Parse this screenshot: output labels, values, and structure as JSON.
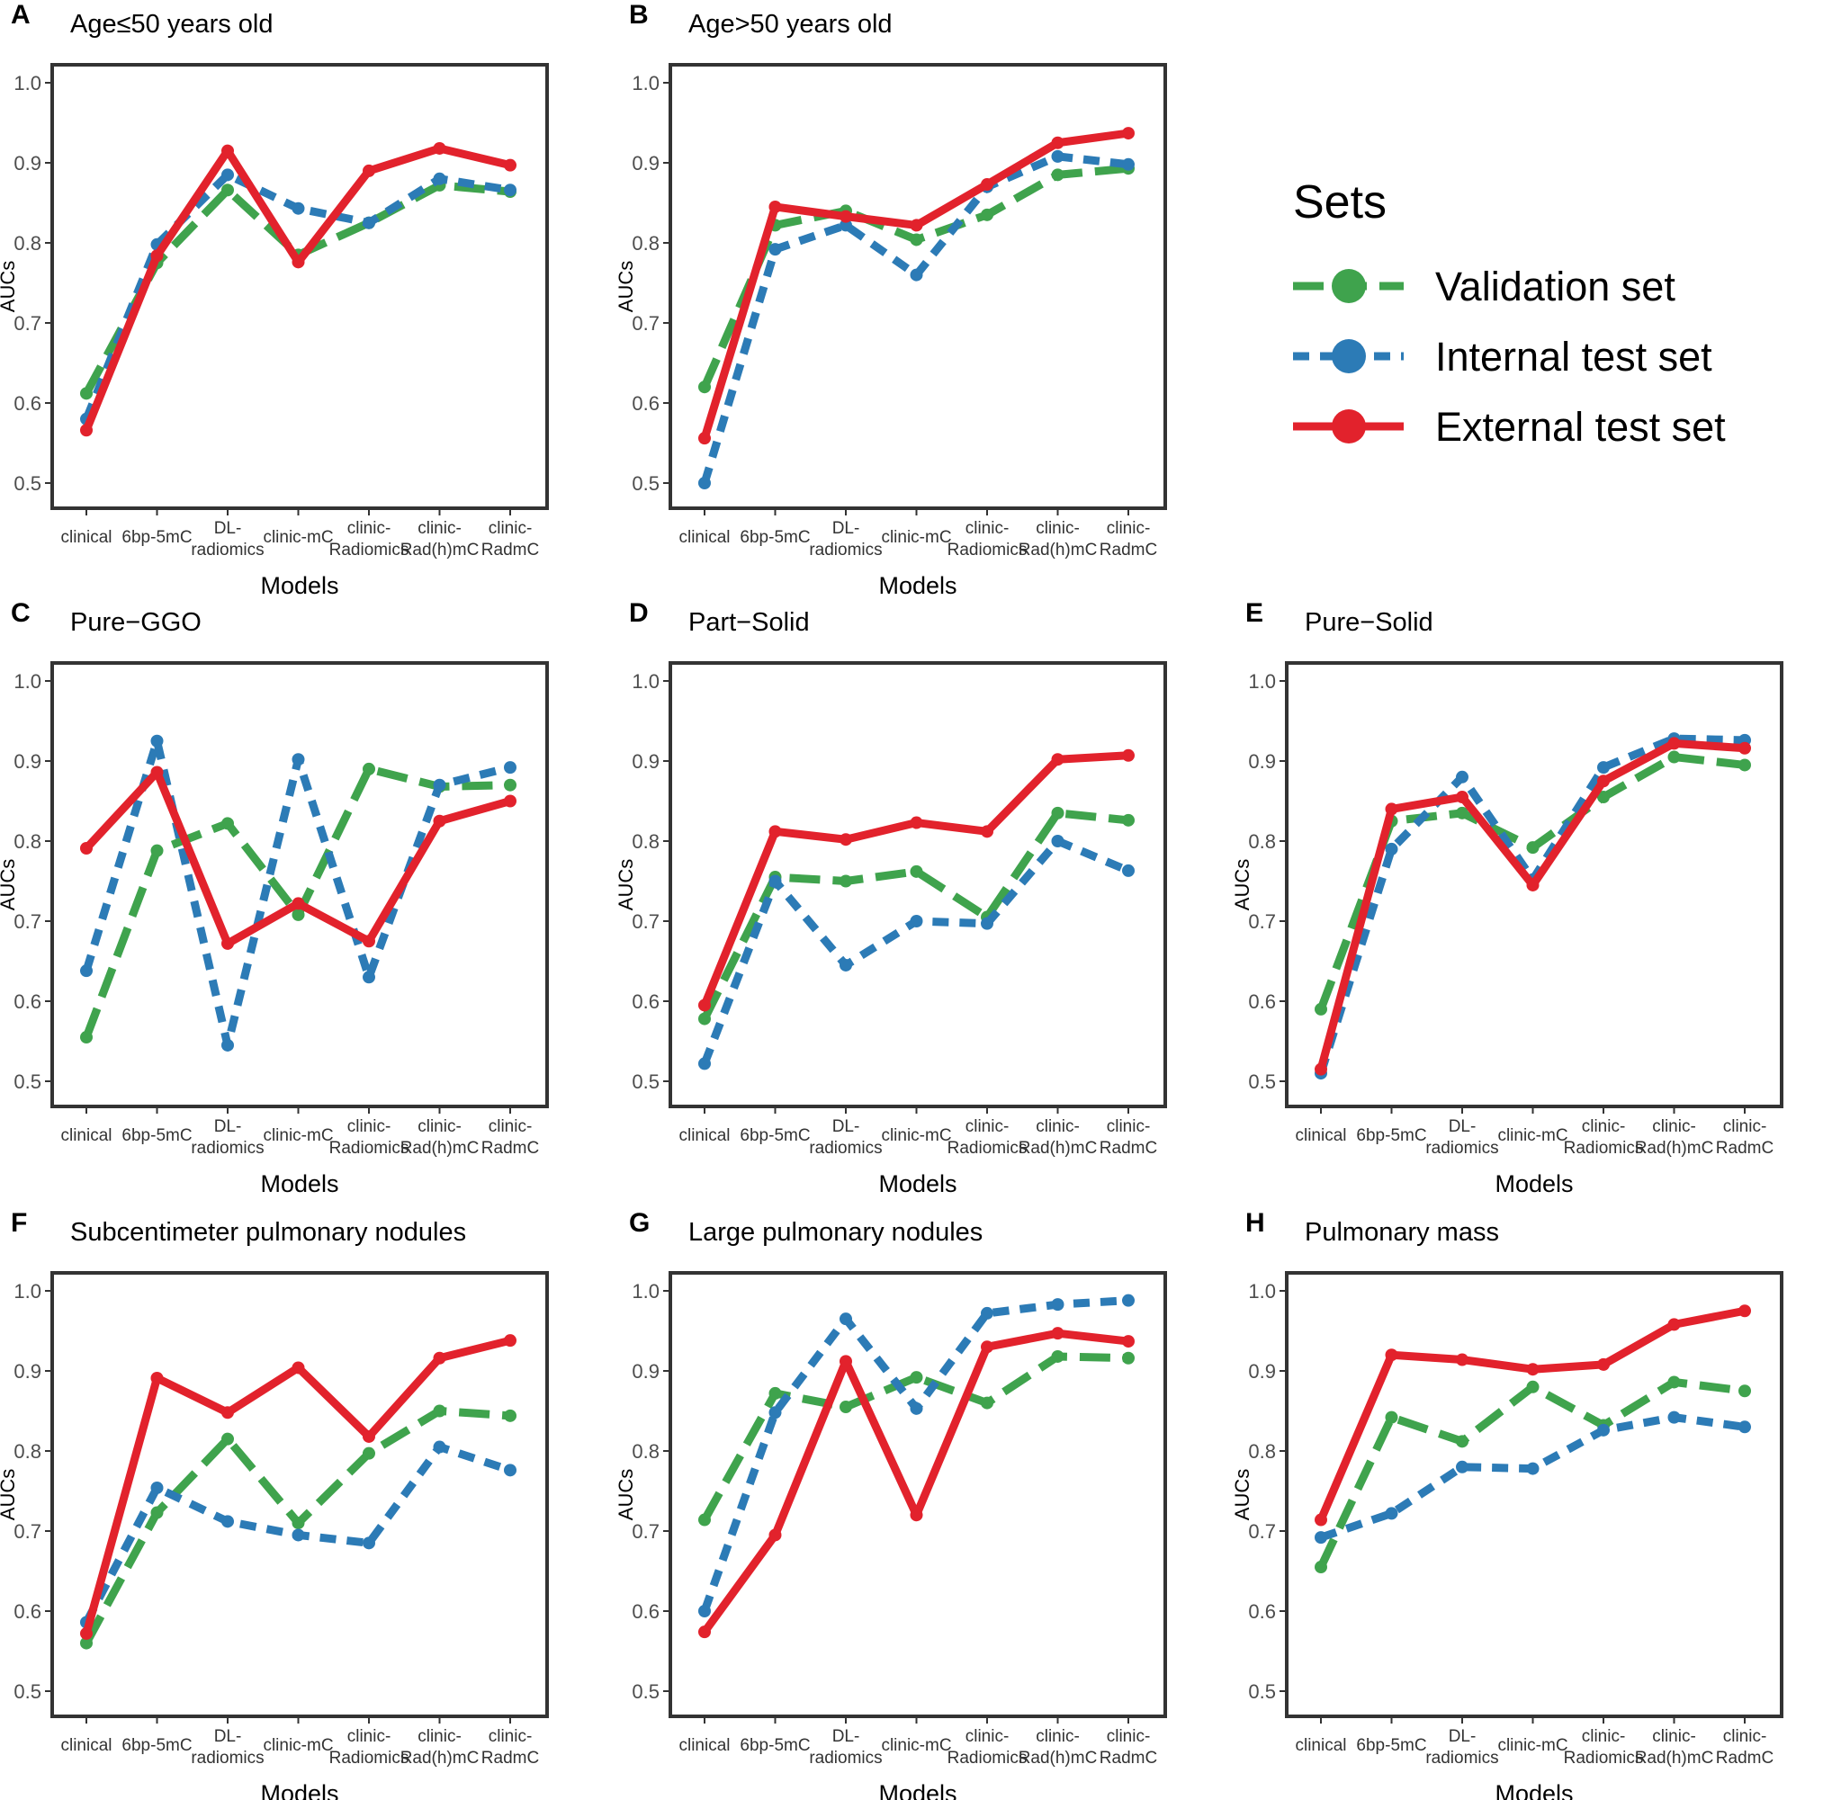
{
  "legend": {
    "title": "Sets",
    "items": [
      {
        "key": "validation",
        "label": "Validation set"
      },
      {
        "key": "internal",
        "label": "Internal test set"
      },
      {
        "key": "external",
        "label": "External test set"
      }
    ]
  },
  "series_styles": {
    "validation": {
      "color": "#3FA34D",
      "dash": "long-dash"
    },
    "internal": {
      "color": "#2C7BB6",
      "dash": "dotted-dash"
    },
    "external": {
      "color": "#E2222C",
      "dash": "solid"
    }
  },
  "chart_data": [
    {
      "id": "A",
      "letter": "A",
      "type": "line",
      "title": "Age≤50 years old",
      "xlabel": "Models",
      "ylabel": "AUCs",
      "categories": [
        "clinical",
        "6bp-5mC",
        "DL-\nradiomics",
        "clinic-mC",
        "clinic-\nRadiomics",
        "clinic-\nRad(h)mC",
        "clinic-\nRadmC"
      ],
      "ylim": [
        0.5,
        1.0
      ],
      "yticks": [
        "0.5",
        "0.6",
        "0.7",
        "0.8",
        "0.9",
        "1.0"
      ],
      "series": [
        {
          "key": "validation",
          "name": "Validation set",
          "values": [
            0.612,
            0.775,
            0.866,
            0.785,
            0.825,
            0.872,
            0.864
          ]
        },
        {
          "key": "internal",
          "name": "Internal test set",
          "values": [
            0.58,
            0.798,
            0.885,
            0.843,
            0.825,
            0.88,
            0.866
          ]
        },
        {
          "key": "external",
          "name": "External test set",
          "values": [
            0.566,
            0.784,
            0.915,
            0.776,
            0.89,
            0.918,
            0.897
          ]
        }
      ]
    },
    {
      "id": "B",
      "letter": "B",
      "type": "line",
      "title": "Age>50 years old",
      "xlabel": "Models",
      "ylabel": "AUCs",
      "categories": [
        "clinical",
        "6bp-5mC",
        "DL-\nradiomics",
        "clinic-mC",
        "clinic-\nRadiomics",
        "clinic-\nRad(h)mC",
        "clinic-\nRadmC"
      ],
      "ylim": [
        0.5,
        1.0
      ],
      "yticks": [
        "0.5",
        "0.6",
        "0.7",
        "0.8",
        "0.9",
        "1.0"
      ],
      "series": [
        {
          "key": "validation",
          "name": "Validation set",
          "values": [
            0.62,
            0.822,
            0.84,
            0.804,
            0.835,
            0.885,
            0.893
          ]
        },
        {
          "key": "internal",
          "name": "Internal test set",
          "values": [
            0.5,
            0.792,
            0.822,
            0.76,
            0.87,
            0.908,
            0.898
          ]
        },
        {
          "key": "external",
          "name": "External test set",
          "values": [
            0.556,
            0.845,
            0.833,
            0.822,
            0.873,
            0.925,
            0.937
          ]
        }
      ]
    },
    {
      "id": "C",
      "letter": "C",
      "type": "line",
      "title": "Pure−GGO",
      "xlabel": "Models",
      "ylabel": "AUCs",
      "categories": [
        "clinical",
        "6bp-5mC",
        "DL-\nradiomics",
        "clinic-mC",
        "clinic-\nRadiomics",
        "clinic-\nRad(h)mC",
        "clinic-\nRadmC"
      ],
      "ylim": [
        0.5,
        1.0
      ],
      "yticks": [
        "0.5",
        "0.6",
        "0.7",
        "0.8",
        "0.9",
        "1.0"
      ],
      "series": [
        {
          "key": "validation",
          "name": "Validation set",
          "values": [
            0.555,
            0.788,
            0.822,
            0.708,
            0.89,
            0.868,
            0.87
          ]
        },
        {
          "key": "internal",
          "name": "Internal test set",
          "values": [
            0.638,
            0.925,
            0.545,
            0.902,
            0.63,
            0.87,
            0.892
          ]
        },
        {
          "key": "external",
          "name": "External test set",
          "values": [
            0.791,
            0.886,
            0.672,
            0.722,
            0.675,
            0.825,
            0.85
          ]
        }
      ]
    },
    {
      "id": "D",
      "letter": "D",
      "type": "line",
      "title": "Part−Solid",
      "xlabel": "Models",
      "ylabel": "AUCs",
      "categories": [
        "clinical",
        "6bp-5mC",
        "DL-\nradiomics",
        "clinic-mC",
        "clinic-\nRadiomics",
        "clinic-\nRad(h)mC",
        "clinic-\nRadmC"
      ],
      "ylim": [
        0.5,
        1.0
      ],
      "yticks": [
        "0.5",
        "0.6",
        "0.7",
        "0.8",
        "0.9",
        "1.0"
      ],
      "series": [
        {
          "key": "validation",
          "name": "Validation set",
          "values": [
            0.578,
            0.755,
            0.75,
            0.762,
            0.705,
            0.835,
            0.826
          ]
        },
        {
          "key": "internal",
          "name": "Internal test set",
          "values": [
            0.522,
            0.75,
            0.645,
            0.7,
            0.697,
            0.8,
            0.763
          ]
        },
        {
          "key": "external",
          "name": "External test set",
          "values": [
            0.595,
            0.812,
            0.802,
            0.823,
            0.812,
            0.902,
            0.907
          ]
        }
      ]
    },
    {
      "id": "E",
      "letter": "E",
      "type": "line",
      "title": "Pure−Solid",
      "xlabel": "Models",
      "ylabel": "AUCs",
      "categories": [
        "clinical",
        "6bp-5mC",
        "DL-\nradiomics",
        "clinic-mC",
        "clinic-\nRadiomics",
        "clinic-\nRad(h)mC",
        "clinic-\nRadmC"
      ],
      "ylim": [
        0.5,
        1.0
      ],
      "yticks": [
        "0.5",
        "0.6",
        "0.7",
        "0.8",
        "0.9",
        "1.0"
      ],
      "series": [
        {
          "key": "validation",
          "name": "Validation set",
          "values": [
            0.59,
            0.825,
            0.835,
            0.792,
            0.855,
            0.905,
            0.895
          ]
        },
        {
          "key": "internal",
          "name": "Internal test set",
          "values": [
            0.51,
            0.79,
            0.88,
            0.752,
            0.892,
            0.928,
            0.926
          ]
        },
        {
          "key": "external",
          "name": "External test set",
          "values": [
            0.515,
            0.84,
            0.855,
            0.745,
            0.875,
            0.922,
            0.916
          ]
        }
      ]
    },
    {
      "id": "F",
      "letter": "F",
      "type": "line",
      "title": "Subcentimeter pulmonary nodules",
      "xlabel": "Models",
      "ylabel": "AUCs",
      "categories": [
        "clinical",
        "6bp-5mC",
        "DL-\nradiomics",
        "clinic-mC",
        "clinic-\nRadiomics",
        "clinic-\nRad(h)mC",
        "clinic-\nRadmC"
      ],
      "ylim": [
        0.5,
        1.0
      ],
      "yticks": [
        "0.5",
        "0.6",
        "0.7",
        "0.8",
        "0.9",
        "1.0"
      ],
      "series": [
        {
          "key": "validation",
          "name": "Validation set",
          "values": [
            0.56,
            0.723,
            0.815,
            0.71,
            0.797,
            0.85,
            0.844
          ]
        },
        {
          "key": "internal",
          "name": "Internal test set",
          "values": [
            0.586,
            0.754,
            0.712,
            0.695,
            0.685,
            0.805,
            0.776
          ]
        },
        {
          "key": "external",
          "name": "External test set",
          "values": [
            0.572,
            0.891,
            0.848,
            0.904,
            0.818,
            0.916,
            0.938
          ]
        }
      ]
    },
    {
      "id": "G",
      "letter": "G",
      "type": "line",
      "title": "Large pulmonary nodules",
      "xlabel": "Models",
      "ylabel": "AUCs",
      "categories": [
        "clinical",
        "6bp-5mC",
        "DL-\nradiomics",
        "clinic-mC",
        "clinic-\nRadiomics",
        "clinic-\nRad(h)mC",
        "clinic-\nRadmC"
      ],
      "ylim": [
        0.5,
        1.0
      ],
      "yticks": [
        "0.5",
        "0.6",
        "0.7",
        "0.8",
        "0.9",
        "1.0"
      ],
      "series": [
        {
          "key": "validation",
          "name": "Validation set",
          "values": [
            0.714,
            0.872,
            0.855,
            0.892,
            0.86,
            0.918,
            0.916
          ]
        },
        {
          "key": "internal",
          "name": "Internal test set",
          "values": [
            0.6,
            0.848,
            0.965,
            0.853,
            0.972,
            0.983,
            0.988
          ]
        },
        {
          "key": "external",
          "name": "External test set",
          "values": [
            0.574,
            0.695,
            0.912,
            0.72,
            0.93,
            0.947,
            0.937
          ]
        }
      ]
    },
    {
      "id": "H",
      "letter": "H",
      "type": "line",
      "title": "Pulmonary mass",
      "xlabel": "Models",
      "ylabel": "AUCs",
      "categories": [
        "clinical",
        "6bp-5mC",
        "DL-\nradiomics",
        "clinic-mC",
        "clinic-\nRadiomics",
        "clinic-\nRad(h)mC",
        "clinic-\nRadmC"
      ],
      "ylim": [
        0.5,
        1.0
      ],
      "yticks": [
        "0.5",
        "0.6",
        "0.7",
        "0.8",
        "0.9",
        "1.0"
      ],
      "series": [
        {
          "key": "validation",
          "name": "Validation set",
          "values": [
            0.655,
            0.842,
            0.812,
            0.88,
            0.832,
            0.886,
            0.875
          ]
        },
        {
          "key": "internal",
          "name": "Internal test set",
          "values": [
            0.692,
            0.722,
            0.78,
            0.778,
            0.826,
            0.842,
            0.83
          ]
        },
        {
          "key": "external",
          "name": "External test set",
          "values": [
            0.714,
            0.92,
            0.914,
            0.902,
            0.908,
            0.958,
            0.975
          ]
        }
      ]
    }
  ]
}
